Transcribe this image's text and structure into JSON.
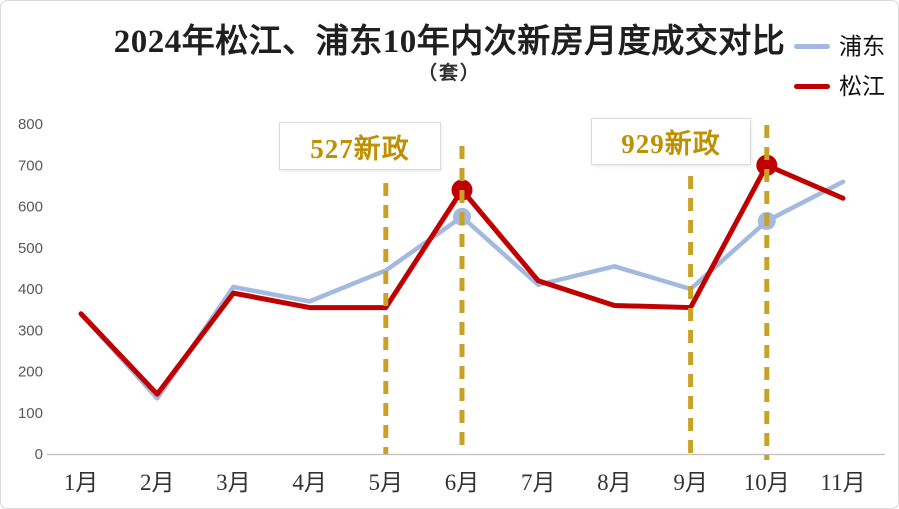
{
  "chart_data": {
    "type": "line",
    "title": "2024年松江、浦东10年内次新房月度成交对比",
    "subtitle": "（套）",
    "categories": [
      "1月",
      "2月",
      "3月",
      "4月",
      "5月",
      "6月",
      "7月",
      "8月",
      "9月",
      "10月",
      "11月"
    ],
    "series": [
      {
        "name": "浦东",
        "color": "#a3b9df",
        "values": [
          340,
          135,
          405,
          370,
          445,
          575,
          410,
          455,
          400,
          565,
          660
        ],
        "emphasized_points": [
          "6月",
          "10月"
        ]
      },
      {
        "name": "松江",
        "color": "#c00000",
        "values": [
          340,
          145,
          390,
          355,
          355,
          640,
          420,
          360,
          355,
          700,
          620
        ],
        "emphasized_points": [
          "6月",
          "10月"
        ]
      }
    ],
    "ylim": [
      0,
      800
    ],
    "yticks": [
      0,
      100,
      200,
      300,
      400,
      500,
      600,
      700,
      800
    ],
    "grid": false,
    "legend_position": "top-right",
    "event_lines": [
      {
        "label": "527新政",
        "months": [
          "5月",
          "6月"
        ]
      },
      {
        "label": "929新政",
        "months": [
          "9月",
          "10月"
        ]
      }
    ]
  },
  "colors": {
    "policy_gold": "#bf9000",
    "dash_gold": "#c8a227",
    "axis_line": "#bfbfbf",
    "pudong_blue": "#a3b9df",
    "songjiang_red": "#c00000"
  }
}
